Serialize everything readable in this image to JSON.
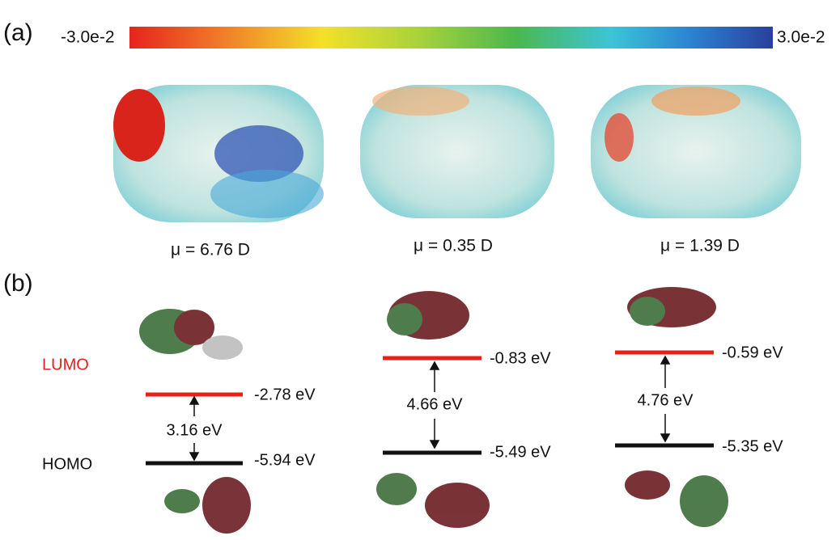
{
  "panels": [
    {
      "label": "(a)"
    },
    {
      "label": "(b)"
    }
  ],
  "colorbar": {
    "min_label": "-3.0e-2",
    "max_label": "3.0e-2"
  },
  "levels": {
    "lumo": "LUMO",
    "homo": "HOMO"
  },
  "molecules": [
    {
      "dipole": "μ = 6.76 D",
      "lumo": "-2.78 eV",
      "homo": "-5.94 eV",
      "gap": "3.16 eV"
    },
    {
      "dipole": "μ = 0.35 D",
      "lumo": "-0.83 eV",
      "homo": "-5.49 eV",
      "gap": "4.66 eV"
    },
    {
      "dipole": "μ = 1.39 D",
      "lumo": "-0.59 eV",
      "homo": "-5.35 eV",
      "gap": "4.76 eV"
    }
  ]
}
